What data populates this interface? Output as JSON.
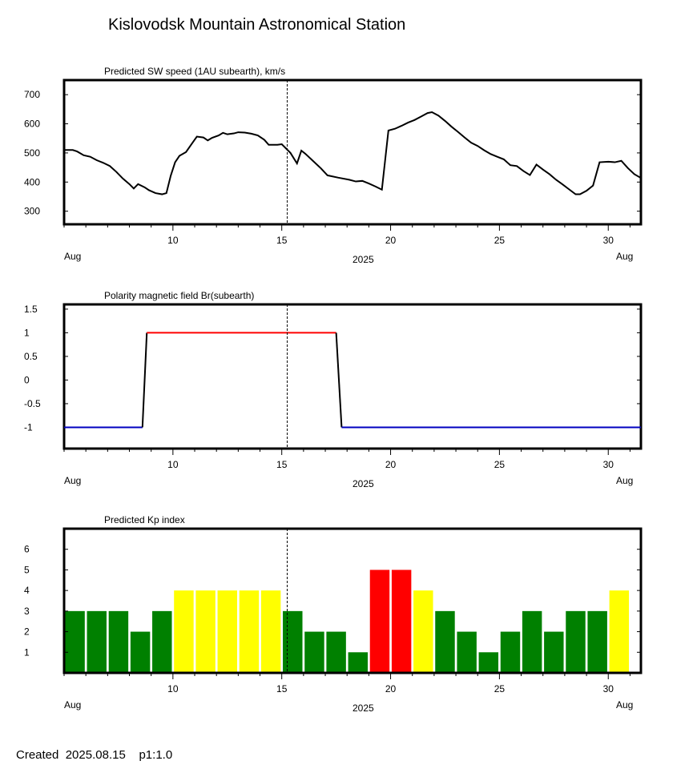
{
  "page": {
    "title": "Kislovodsk Mountain Astronomical Station",
    "created_label": "Created",
    "created_date": "2025.08.15",
    "page_label": "p1:1.0"
  },
  "axis_shared": {
    "month_left": "Aug",
    "month_right": "Aug",
    "year": "2025",
    "x_range": [
      5.0,
      31.5
    ],
    "current_day_marker": 15.25
  },
  "colors": {
    "positive_polarity": "#ff0000",
    "negative_polarity": "#0000c0",
    "kp_low": "#008000",
    "kp_mid": "#ffff00",
    "kp_high": "#ff0000"
  },
  "chart_data": [
    {
      "type": "line",
      "title": "Predicted SW speed (1AU subearth), km/s",
      "ylim": [
        255,
        750
      ],
      "yticks": [
        "700",
        "600",
        "500",
        "400",
        "300"
      ],
      "ytick_values": [
        700,
        600,
        500,
        400,
        300
      ],
      "xticks": [
        "10",
        "15",
        "20",
        "25",
        "30"
      ],
      "xtick_values": [
        10,
        15,
        20,
        25,
        30
      ],
      "points": [
        [
          5.0,
          510
        ],
        [
          5.4,
          510
        ],
        [
          5.6,
          505
        ],
        [
          5.9,
          492
        ],
        [
          6.2,
          487
        ],
        [
          6.5,
          475
        ],
        [
          6.8,
          466
        ],
        [
          7.1,
          455
        ],
        [
          7.4,
          435
        ],
        [
          7.7,
          412
        ],
        [
          8.0,
          393
        ],
        [
          8.2,
          378
        ],
        [
          8.4,
          393
        ],
        [
          8.7,
          382
        ],
        [
          8.9,
          372
        ],
        [
          9.2,
          362
        ],
        [
          9.5,
          358
        ],
        [
          9.7,
          362
        ],
        [
          9.9,
          422
        ],
        [
          10.1,
          468
        ],
        [
          10.3,
          490
        ],
        [
          10.6,
          503
        ],
        [
          10.9,
          535
        ],
        [
          11.1,
          556
        ],
        [
          11.4,
          553
        ],
        [
          11.6,
          543
        ],
        [
          11.8,
          552
        ],
        [
          12.1,
          560
        ],
        [
          12.3,
          569
        ],
        [
          12.5,
          564
        ],
        [
          12.8,
          567
        ],
        [
          13.0,
          571
        ],
        [
          13.3,
          570
        ],
        [
          13.6,
          566
        ],
        [
          13.9,
          560
        ],
        [
          14.2,
          545
        ],
        [
          14.4,
          528
        ],
        [
          14.8,
          528
        ],
        [
          15.0,
          530
        ],
        [
          15.4,
          500
        ],
        [
          15.7,
          464
        ],
        [
          15.9,
          508
        ],
        [
          16.1,
          496
        ],
        [
          16.4,
          475
        ],
        [
          16.8,
          447
        ],
        [
          17.1,
          423
        ],
        [
          17.6,
          415
        ],
        [
          18.1,
          408
        ],
        [
          18.4,
          402
        ],
        [
          18.7,
          404
        ],
        [
          19.0,
          395
        ],
        [
          19.3,
          385
        ],
        [
          19.6,
          374
        ],
        [
          19.9,
          577
        ],
        [
          20.2,
          583
        ],
        [
          20.5,
          593
        ],
        [
          20.8,
          604
        ],
        [
          21.1,
          613
        ],
        [
          21.4,
          625
        ],
        [
          21.7,
          637
        ],
        [
          21.9,
          640
        ],
        [
          22.2,
          628
        ],
        [
          22.5,
          610
        ],
        [
          22.8,
          590
        ],
        [
          23.1,
          572
        ],
        [
          23.4,
          553
        ],
        [
          23.7,
          535
        ],
        [
          24.0,
          524
        ],
        [
          24.3,
          509
        ],
        [
          24.6,
          496
        ],
        [
          24.9,
          487
        ],
        [
          25.2,
          478
        ],
        [
          25.5,
          458
        ],
        [
          25.8,
          455
        ],
        [
          26.1,
          438
        ],
        [
          26.4,
          424
        ],
        [
          26.7,
          460
        ],
        [
          27.0,
          443
        ],
        [
          27.3,
          427
        ],
        [
          27.6,
          408
        ],
        [
          27.9,
          392
        ],
        [
          28.2,
          375
        ],
        [
          28.5,
          358
        ],
        [
          28.7,
          358
        ],
        [
          29.0,
          370
        ],
        [
          29.3,
          388
        ],
        [
          29.6,
          468
        ],
        [
          30.0,
          470
        ],
        [
          30.3,
          468
        ],
        [
          30.6,
          473
        ],
        [
          30.9,
          448
        ],
        [
          31.2,
          427
        ],
        [
          31.5,
          414
        ],
        [
          31.9,
          418
        ],
        [
          32.3,
          414
        ]
      ]
    },
    {
      "type": "line",
      "title": "Polarity magnetic field  Br(subearth)",
      "ylim": [
        -1.45,
        1.6
      ],
      "yticks": [
        "1.5",
        "1",
        "0.5",
        "0",
        "-0.5",
        "-1"
      ],
      "ytick_values": [
        1.5,
        1,
        0.5,
        0,
        -0.5,
        -1
      ],
      "xticks": [
        "10",
        "15",
        "20",
        "25",
        "30"
      ],
      "xtick_values": [
        10,
        15,
        20,
        25,
        30
      ],
      "segments": [
        {
          "polarity": "negative",
          "points": [
            [
              5.0,
              -1
            ],
            [
              8.6,
              -1
            ]
          ]
        },
        {
          "polarity": "transition",
          "points": [
            [
              8.6,
              -1
            ],
            [
              8.8,
              1
            ]
          ]
        },
        {
          "polarity": "positive",
          "points": [
            [
              8.8,
              1
            ],
            [
              17.5,
              1
            ]
          ]
        },
        {
          "polarity": "transition",
          "points": [
            [
              17.5,
              1
            ],
            [
              17.75,
              -1
            ]
          ]
        },
        {
          "polarity": "negative",
          "points": [
            [
              17.75,
              -1
            ],
            [
              31.5,
              -1
            ]
          ]
        }
      ]
    },
    {
      "type": "bar",
      "title": "Predicted Kp index",
      "ylim": [
        0,
        7
      ],
      "yticks": [
        "6",
        "5",
        "4",
        "3",
        "2",
        "1"
      ],
      "ytick_values": [
        6,
        5,
        4,
        3,
        2,
        1
      ],
      "xticks": [
        "10",
        "15",
        "20",
        "25",
        "30"
      ],
      "xtick_values": [
        10,
        15,
        20,
        25,
        30
      ],
      "x": [
        5.5,
        6.5,
        7.5,
        8.5,
        9.5,
        10.5,
        11.5,
        12.5,
        13.5,
        14.5,
        15.5,
        16.5,
        17.5,
        18.5,
        19.5,
        20.5,
        21.5,
        22.5,
        23.5,
        24.5,
        25.5,
        26.5,
        27.5,
        28.5,
        29.5,
        30.5
      ],
      "values": [
        3,
        3,
        3,
        2,
        3,
        4,
        4,
        4,
        4,
        4,
        3,
        2,
        2,
        1,
        5,
        5,
        4,
        3,
        2,
        1,
        2,
        3,
        2,
        3,
        3,
        4
      ]
    }
  ]
}
